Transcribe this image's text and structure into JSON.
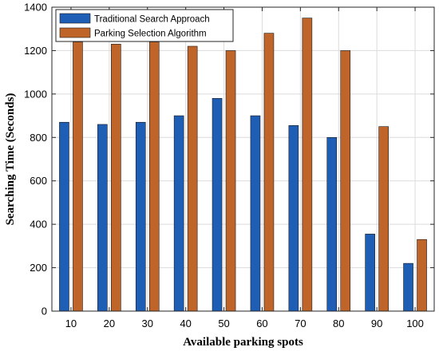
{
  "chart_data": {
    "type": "bar",
    "categories": [
      "10",
      "20",
      "30",
      "40",
      "50",
      "60",
      "70",
      "80",
      "90",
      "100"
    ],
    "series": [
      {
        "name": "Traditional Search Approach",
        "color": "#1f5eb5",
        "values": [
          870,
          860,
          870,
          900,
          980,
          900,
          855,
          800,
          355,
          220
        ]
      },
      {
        "name": "Parking Selection Algorithm",
        "color": "#c0652a",
        "values": [
          1240,
          1230,
          1240,
          1220,
          1200,
          1280,
          1350,
          1200,
          850,
          330
        ]
      }
    ],
    "title": "",
    "xlabel": "Available parking spots",
    "ylabel": "Searching Time (Seconds)",
    "ylim": [
      0,
      1400
    ],
    "yticks": [
      0,
      200,
      400,
      600,
      800,
      1000,
      1200,
      1400
    ],
    "grid": true,
    "legend_position": "top-left"
  }
}
